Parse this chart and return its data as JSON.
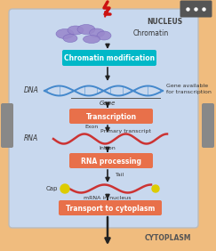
{
  "fig_width": 2.43,
  "fig_height": 2.82,
  "dpi": 100,
  "outer_bg": "#F0BC7E",
  "inner_bg": "#C8D8EE",
  "nucleus_label": "NUCLEUS",
  "cytoplasm_label": "CYTOPLASM",
  "chromatin_label": "Chromatin",
  "dna_label": "DNA",
  "gene_label": "Gene",
  "gene_avail_label": "Gene available\nfor transcription",
  "rna_label": "RNA",
  "exon_label": "Exon",
  "intron_label": "Intron",
  "primary_label": "Primary transcript",
  "cap_label": "Cap",
  "tail_label": "Tail",
  "mrna_label": "mRNA in nucleus",
  "box1_text": "Chromatin modification",
  "box2_text": "Transcription",
  "box3_text": "RNA processing",
  "box4_text": "Transport to cytoplasm",
  "box1_color": "#00B8C8",
  "box2_color": "#E8704A",
  "box3_color": "#E8704A",
  "box4_color": "#E8704A",
  "box_text_color": "#FFFFFF",
  "arrow_color": "#222222",
  "dna_color": "#4488CC",
  "rna_color": "#CC3333",
  "chromatin_color": "#9988CC",
  "lightning_color": "#CC1111",
  "gene_line_color": "#888888",
  "dots_bg": "#555555",
  "sidebar_color": "#888888",
  "cap_color": "#DDCC00",
  "tail_color": "#DDCC00"
}
